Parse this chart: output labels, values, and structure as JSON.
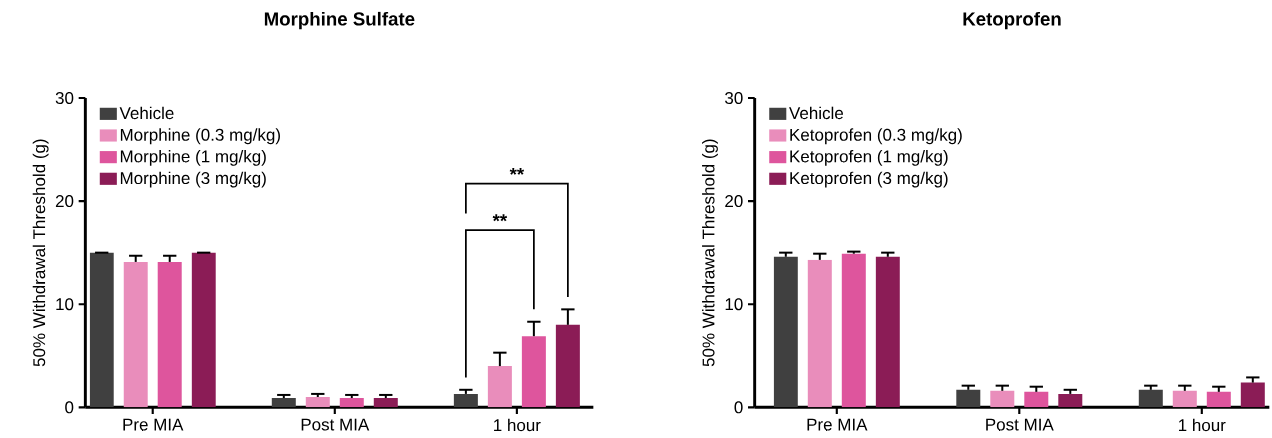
{
  "chart_data": [
    {
      "type": "bar",
      "title": "Morphine Sulfate",
      "ylabel": "50% Withdrawal Threshold (g)",
      "categories": [
        "Pre MIA",
        "Post MIA",
        "1 hour"
      ],
      "ylim": [
        0,
        30
      ],
      "yticks": [
        0,
        10,
        20,
        30
      ],
      "legend": "top left",
      "series": [
        {
          "name": "Vehicle",
          "color": "#404040",
          "values": [
            15.0,
            0.9,
            1.3
          ],
          "errors": [
            null,
            0.3,
            0.4
          ]
        },
        {
          "name": "Morphine (0.3 mg/kg)",
          "color": "#e98dbb",
          "values": [
            14.1,
            1.0,
            4.0
          ],
          "errors": [
            0.6,
            0.3,
            1.3
          ]
        },
        {
          "name": "Morphine (1 mg/kg)",
          "color": "#de559d",
          "values": [
            14.1,
            0.9,
            6.9
          ],
          "errors": [
            0.6,
            0.3,
            1.4
          ]
        },
        {
          "name": "Morphine (3 mg/kg)",
          "color": "#8b1c56",
          "values": [
            15.0,
            0.9,
            8.0
          ],
          "errors": [
            null,
            0.3,
            1.5
          ]
        }
      ],
      "annotations": [
        "**",
        "**"
      ]
    },
    {
      "type": "bar",
      "title": "Ketoprofen",
      "ylabel": "50% Withdrawal Threshold (g)",
      "categories": [
        "Pre MIA",
        "Post MIA",
        "1 hour"
      ],
      "ylim": [
        0,
        30
      ],
      "yticks": [
        0,
        10,
        20,
        30
      ],
      "legend": "top left",
      "series": [
        {
          "name": "Vehicle",
          "color": "#404040",
          "values": [
            14.6,
            1.7,
            1.7
          ],
          "errors": [
            0.4,
            0.4,
            0.4
          ]
        },
        {
          "name": "Ketoprofen (0.3 mg/kg)",
          "color": "#e98dbb",
          "values": [
            14.3,
            1.6,
            1.6
          ],
          "errors": [
            0.6,
            0.5,
            0.5
          ]
        },
        {
          "name": "Ketoprofen (1 mg/kg)",
          "color": "#de559d",
          "values": [
            14.9,
            1.5,
            1.5
          ],
          "errors": [
            0.2,
            0.5,
            0.5
          ]
        },
        {
          "name": "Ketoprofen (3 mg/kg)",
          "color": "#8b1c56",
          "values": [
            14.6,
            1.3,
            2.4
          ],
          "errors": [
            0.4,
            0.4,
            0.5
          ]
        }
      ]
    }
  ]
}
